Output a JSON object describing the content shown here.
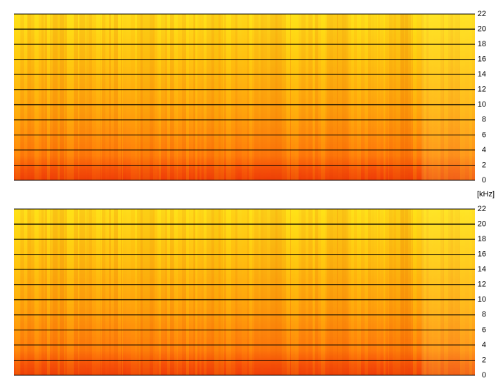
{
  "chart_data": [
    {
      "type": "spectrogram",
      "ylim": [
        0,
        22
      ],
      "yticks": [
        0,
        2,
        4,
        6,
        8,
        10,
        12,
        14,
        16,
        18,
        20,
        22
      ],
      "grid": true,
      "ylabel": "[kHz]"
    },
    {
      "type": "spectrogram",
      "ylim": [
        0,
        22
      ],
      "yticks": [
        0,
        2,
        4,
        6,
        8,
        10,
        12,
        14,
        16,
        18,
        20,
        22
      ],
      "grid": true
    }
  ]
}
